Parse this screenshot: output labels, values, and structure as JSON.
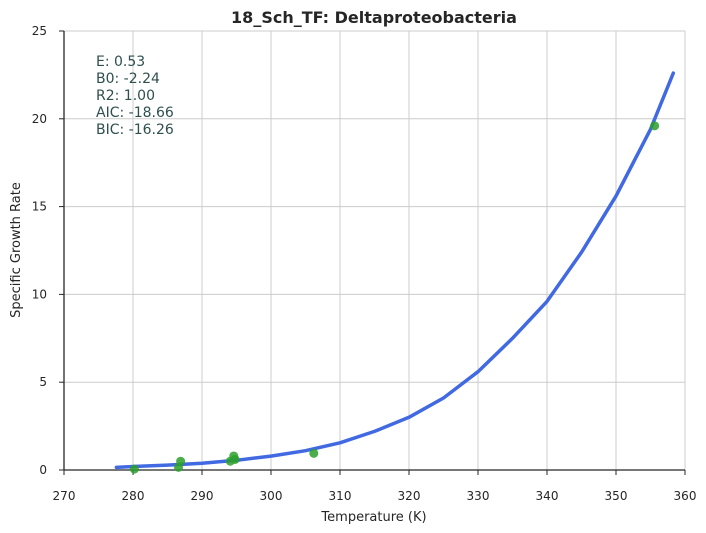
{
  "chart_data": {
    "type": "scatter",
    "title": "18_Sch_TF: Deltaproteobacteria",
    "xlabel": "Temperature (K)",
    "ylabel": "Specific Growth Rate",
    "xlim": [
      270,
      360
    ],
    "ylim": [
      0,
      25
    ],
    "xticks": [
      270,
      280,
      290,
      300,
      310,
      320,
      330,
      340,
      350,
      360
    ],
    "yticks": [
      0,
      5,
      10,
      15,
      20,
      25
    ],
    "grid": true,
    "annotations": [
      "E:  0.53",
      "B0:  -2.24",
      "R2:  1.00",
      "AIC: -18.66",
      "BIC: -16.26"
    ],
    "points": {
      "color": "#2ca02c",
      "x": [
        280.2,
        286.6,
        286.9,
        294.1,
        294.6,
        294.8,
        306.2,
        355.6
      ],
      "y": [
        0.05,
        0.15,
        0.5,
        0.5,
        0.8,
        0.6,
        0.95,
        19.6
      ]
    },
    "fit": {
      "color": "#4169e1",
      "x": [
        277.6,
        280,
        285,
        290,
        295,
        300,
        305,
        310,
        315,
        320,
        325,
        330,
        335,
        340,
        345,
        350,
        355,
        358.3
      ],
      "y": [
        0.15,
        0.2,
        0.28,
        0.39,
        0.55,
        0.79,
        1.1,
        1.55,
        2.2,
        3.0,
        4.1,
        5.6,
        7.5,
        9.6,
        12.4,
        15.6,
        19.4,
        22.6
      ]
    }
  }
}
